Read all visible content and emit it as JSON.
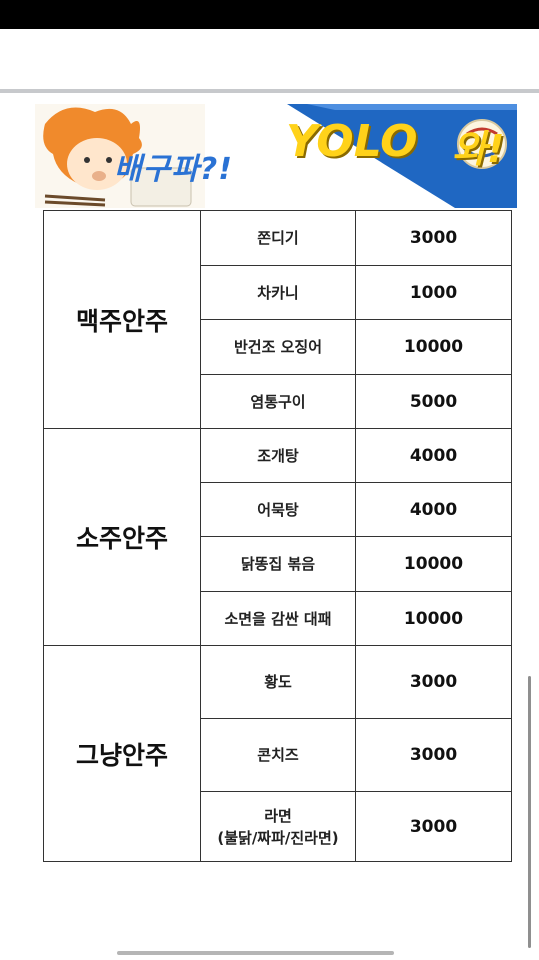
{
  "banner": {
    "title": "배구파?!",
    "yolo": "YOLO",
    "wa": "와!"
  },
  "menu": {
    "categories": [
      {
        "name": "맥주안주",
        "items": [
          {
            "name": "쫀디기",
            "price": "3000"
          },
          {
            "name": "차카니",
            "price": "1000"
          },
          {
            "name": "반건조 오징어",
            "price": "10000"
          },
          {
            "name": "염통구이",
            "price": "5000"
          }
        ]
      },
      {
        "name": "소주안주",
        "items": [
          {
            "name": "조개탕",
            "price": "4000"
          },
          {
            "name": "어묵탕",
            "price": "4000"
          },
          {
            "name": "닭똥집 볶음",
            "price": "10000"
          },
          {
            "name": "소면을 감싼 대패",
            "price": "10000"
          }
        ]
      },
      {
        "name": "그냥안주",
        "items": [
          {
            "name": "황도",
            "price": "3000"
          },
          {
            "name": "콘치즈",
            "price": "3000"
          },
          {
            "name": "라면",
            "name_sub": "(불닭/짜파/진라면)",
            "price": "3000"
          }
        ]
      }
    ]
  }
}
